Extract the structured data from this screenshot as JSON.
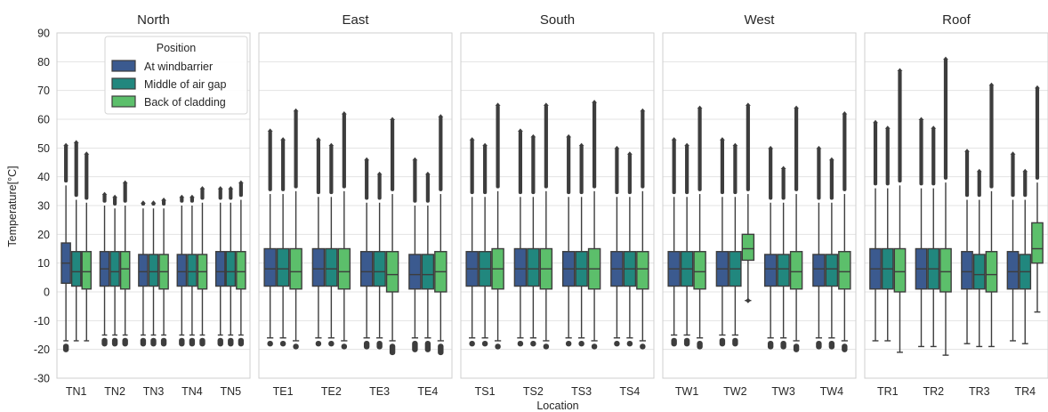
{
  "chart_data": {
    "type": "box",
    "ylabel": "Temperature[°C]",
    "xlabel": "Location",
    "ylim": [
      -30,
      90
    ],
    "yticks": [
      -30,
      -20,
      -10,
      0,
      10,
      20,
      30,
      40,
      50,
      60,
      70,
      80,
      90
    ],
    "grid": true,
    "legend": {
      "title": "Position",
      "placement": "top-left of first panel",
      "entries": [
        "At windbarrier",
        "Middle of air gap",
        "Back of cladding"
      ]
    },
    "colors": {
      "At windbarrier": "#3b5a8f",
      "Middle of air gap": "#21877e",
      "Back of cladding": "#5cbf6b",
      "line": "#3d3d3d",
      "grid": "#e3e3e3",
      "frame": "#cfcfcf"
    },
    "panels": [
      {
        "title": "North",
        "categories": [
          "TN1",
          "TN2",
          "TN3",
          "TN4",
          "TN5"
        ],
        "boxes": [
          [
            {
              "q1": 3,
              "median": 10,
              "q3": 17,
              "whislo": -17,
              "whishi": 37,
              "flo": -21,
              "fhi": 51
            },
            {
              "q1": 2,
              "median": 7,
              "q3": 14,
              "whislo": -17,
              "whishi": 32,
              "flo": -17,
              "fhi": 52
            },
            {
              "q1": 1,
              "median": 7,
              "q3": 14,
              "whislo": -17,
              "whishi": 31,
              "flo": -18,
              "fhi": 48
            }
          ],
          [
            {
              "q1": 2,
              "median": 8,
              "q3": 14,
              "whislo": -15,
              "whishi": 30,
              "flo": -19,
              "fhi": 34
            },
            {
              "q1": 2,
              "median": 7,
              "q3": 14,
              "whislo": -15,
              "whishi": 29,
              "flo": -19,
              "fhi": 33
            },
            {
              "q1": 1,
              "median": 8,
              "q3": 14,
              "whislo": -15,
              "whishi": 30,
              "flo": -19,
              "fhi": 38
            }
          ],
          [
            {
              "q1": 2,
              "median": 7,
              "q3": 13,
              "whislo": -15,
              "whishi": 29,
              "flo": -19,
              "fhi": 31
            },
            {
              "q1": 2,
              "median": 7,
              "q3": 13,
              "whislo": -15,
              "whishi": 29,
              "flo": -19,
              "fhi": 31
            },
            {
              "q1": 1,
              "median": 7,
              "q3": 13,
              "whislo": -15,
              "whishi": 29,
              "flo": -19,
              "fhi": 32
            }
          ],
          [
            {
              "q1": 2,
              "median": 7,
              "q3": 13,
              "whislo": -15,
              "whishi": 30,
              "flo": -19,
              "fhi": 33
            },
            {
              "q1": 2,
              "median": 7,
              "q3": 13,
              "whislo": -15,
              "whishi": 30,
              "flo": -19,
              "fhi": 33
            },
            {
              "q1": 1,
              "median": 7,
              "q3": 13,
              "whislo": -15,
              "whishi": 31,
              "flo": -19,
              "fhi": 36
            }
          ],
          [
            {
              "q1": 2,
              "median": 7,
              "q3": 14,
              "whislo": -15,
              "whishi": 31,
              "flo": -19,
              "fhi": 36
            },
            {
              "q1": 2,
              "median": 7,
              "q3": 14,
              "whislo": -15,
              "whishi": 31,
              "flo": -19,
              "fhi": 36
            },
            {
              "q1": 1,
              "median": 7,
              "q3": 14,
              "whislo": -15,
              "whishi": 32,
              "flo": -19,
              "fhi": 38
            }
          ]
        ]
      },
      {
        "title": "East",
        "categories": [
          "TE1",
          "TE2",
          "TE3",
          "TE4"
        ],
        "boxes": [
          [
            {
              "q1": 2,
              "median": 8,
              "q3": 15,
              "whislo": -16,
              "whishi": 34,
              "flo": -19,
              "fhi": 56
            },
            {
              "q1": 2,
              "median": 8,
              "q3": 15,
              "whislo": -16,
              "whishi": 34,
              "flo": -19,
              "fhi": 53
            },
            {
              "q1": 1,
              "median": 7,
              "q3": 15,
              "whislo": -17,
              "whishi": 35,
              "flo": -20,
              "fhi": 63
            }
          ],
          [
            {
              "q1": 2,
              "median": 8,
              "q3": 15,
              "whislo": -16,
              "whishi": 33,
              "flo": -19,
              "fhi": 53
            },
            {
              "q1": 2,
              "median": 8,
              "q3": 15,
              "whislo": -16,
              "whishi": 33,
              "flo": -19,
              "fhi": 51
            },
            {
              "q1": 1,
              "median": 7,
              "q3": 15,
              "whislo": -17,
              "whishi": 35,
              "flo": -20,
              "fhi": 62
            }
          ],
          [
            {
              "q1": 2,
              "median": 7,
              "q3": 14,
              "whislo": -16,
              "whishi": 31,
              "flo": -20,
              "fhi": 46
            },
            {
              "q1": 2,
              "median": 7,
              "q3": 14,
              "whislo": -16,
              "whishi": 31,
              "flo": -20,
              "fhi": 41
            },
            {
              "q1": 0,
              "median": 6,
              "q3": 14,
              "whislo": -17,
              "whishi": 34,
              "flo": -22,
              "fhi": 60
            }
          ],
          [
            {
              "q1": 1,
              "median": 6,
              "q3": 13,
              "whislo": -16,
              "whishi": 30,
              "flo": -21,
              "fhi": 46
            },
            {
              "q1": 1,
              "median": 6,
              "q3": 13,
              "whislo": -16,
              "whishi": 30,
              "flo": -21,
              "fhi": 41
            },
            {
              "q1": 0,
              "median": 7,
              "q3": 14,
              "whislo": -17,
              "whishi": 34,
              "flo": -22,
              "fhi": 61
            }
          ]
        ]
      },
      {
        "title": "South",
        "categories": [
          "TS1",
          "TS2",
          "TS3",
          "TS4"
        ],
        "boxes": [
          [
            {
              "q1": 2,
              "median": 8,
              "q3": 14,
              "whislo": -16,
              "whishi": 33,
              "flo": -19,
              "fhi": 53
            },
            {
              "q1": 2,
              "median": 8,
              "q3": 14,
              "whislo": -16,
              "whishi": 33,
              "flo": -19,
              "fhi": 51
            },
            {
              "q1": 1,
              "median": 8,
              "q3": 15,
              "whislo": -17,
              "whishi": 35,
              "flo": -20,
              "fhi": 65
            }
          ],
          [
            {
              "q1": 2,
              "median": 8,
              "q3": 15,
              "whislo": -16,
              "whishi": 33,
              "flo": -19,
              "fhi": 56
            },
            {
              "q1": 2,
              "median": 8,
              "q3": 15,
              "whislo": -16,
              "whishi": 33,
              "flo": -19,
              "fhi": 54
            },
            {
              "q1": 1,
              "median": 8,
              "q3": 15,
              "whislo": -17,
              "whishi": 35,
              "flo": -20,
              "fhi": 65
            }
          ],
          [
            {
              "q1": 2,
              "median": 8,
              "q3": 14,
              "whislo": -16,
              "whishi": 33,
              "flo": -19,
              "fhi": 54
            },
            {
              "q1": 2,
              "median": 8,
              "q3": 14,
              "whislo": -16,
              "whishi": 33,
              "flo": -19,
              "fhi": 51
            },
            {
              "q1": 1,
              "median": 8,
              "q3": 15,
              "whislo": -17,
              "whishi": 35,
              "flo": -20,
              "fhi": 66
            }
          ],
          [
            {
              "q1": 2,
              "median": 8,
              "q3": 14,
              "whislo": -16,
              "whishi": 33,
              "flo": -19,
              "fhi": 50
            },
            {
              "q1": 2,
              "median": 8,
              "q3": 14,
              "whislo": -16,
              "whishi": 33,
              "flo": -19,
              "fhi": 48
            },
            {
              "q1": 1,
              "median": 8,
              "q3": 14,
              "whislo": -17,
              "whishi": 35,
              "flo": -20,
              "fhi": 63
            }
          ]
        ]
      },
      {
        "title": "West",
        "categories": [
          "TW1",
          "TW2",
          "TW3",
          "TW4"
        ],
        "boxes": [
          [
            {
              "q1": 2,
              "median": 8,
              "q3": 14,
              "whislo": -15,
              "whishi": 33,
              "flo": -19,
              "fhi": 53
            },
            {
              "q1": 2,
              "median": 8,
              "q3": 14,
              "whislo": -15,
              "whishi": 33,
              "flo": -19,
              "fhi": 51
            },
            {
              "q1": 1,
              "median": 7,
              "q3": 14,
              "whislo": -16,
              "whishi": 34,
              "flo": -20,
              "fhi": 64
            }
          ],
          [
            {
              "q1": 2,
              "median": 8,
              "q3": 14,
              "whislo": -15,
              "whishi": 33,
              "flo": -19,
              "fhi": 53
            },
            {
              "q1": 2,
              "median": 8,
              "q3": 14,
              "whislo": -15,
              "whishi": 33,
              "flo": -19,
              "fhi": 51
            },
            {
              "q1": 11,
              "median": 15,
              "q3": 20,
              "whislo": -3,
              "whishi": 34,
              "flo": -3,
              "fhi": 65
            }
          ],
          [
            {
              "q1": 2,
              "median": 8,
              "q3": 13,
              "whislo": -16,
              "whishi": 31,
              "flo": -20,
              "fhi": 50
            },
            {
              "q1": 2,
              "median": 8,
              "q3": 13,
              "whislo": -16,
              "whishi": 31,
              "flo": -20,
              "fhi": 43
            },
            {
              "q1": 1,
              "median": 7,
              "q3": 14,
              "whislo": -17,
              "whishi": 34,
              "flo": -21,
              "fhi": 64
            }
          ],
          [
            {
              "q1": 2,
              "median": 8,
              "q3": 13,
              "whislo": -16,
              "whishi": 31,
              "flo": -20,
              "fhi": 50
            },
            {
              "q1": 2,
              "median": 8,
              "q3": 13,
              "whislo": -16,
              "whishi": 31,
              "flo": -20,
              "fhi": 46
            },
            {
              "q1": 1,
              "median": 7,
              "q3": 14,
              "whislo": -17,
              "whishi": 34,
              "flo": -21,
              "fhi": 62
            }
          ]
        ]
      },
      {
        "title": "Roof",
        "categories": [
          "TR1",
          "TR2",
          "TR3",
          "TR4"
        ],
        "boxes": [
          [
            {
              "q1": 1,
              "median": 8,
              "q3": 15,
              "whislo": -17,
              "whishi": 36,
              "flo": -17,
              "fhi": 59
            },
            {
              "q1": 1,
              "median": 8,
              "q3": 15,
              "whislo": -17,
              "whishi": 36,
              "flo": -17,
              "fhi": 57
            },
            {
              "q1": 0,
              "median": 7,
              "q3": 15,
              "whislo": -21,
              "whishi": 37,
              "flo": -21,
              "fhi": 77
            }
          ],
          [
            {
              "q1": 1,
              "median": 8,
              "q3": 15,
              "whislo": -19,
              "whishi": 36,
              "flo": -19,
              "fhi": 60
            },
            {
              "q1": 1,
              "median": 8,
              "q3": 15,
              "whislo": -19,
              "whishi": 36,
              "flo": -19,
              "fhi": 57
            },
            {
              "q1": 0,
              "median": 7,
              "q3": 15,
              "whislo": -22,
              "whishi": 38,
              "flo": -22,
              "fhi": 81
            }
          ],
          [
            {
              "q1": 1,
              "median": 7,
              "q3": 14,
              "whislo": -18,
              "whishi": 32,
              "flo": -18,
              "fhi": 49
            },
            {
              "q1": 1,
              "median": 6,
              "q3": 13,
              "whislo": -19,
              "whishi": 32,
              "flo": -20,
              "fhi": 42
            },
            {
              "q1": 0,
              "median": 6,
              "q3": 14,
              "whislo": -19,
              "whishi": 35,
              "flo": -19,
              "fhi": 72
            }
          ],
          [
            {
              "q1": 1,
              "median": 7,
              "q3": 14,
              "whislo": -17,
              "whishi": 32,
              "flo": -17,
              "fhi": 48
            },
            {
              "q1": 1,
              "median": 7,
              "q3": 13,
              "whislo": -18,
              "whishi": 32,
              "flo": -18,
              "fhi": 42
            },
            {
              "q1": 10,
              "median": 15,
              "q3": 24,
              "whislo": -7,
              "whishi": 38,
              "flo": -7,
              "fhi": 71
            }
          ]
        ]
      }
    ]
  }
}
